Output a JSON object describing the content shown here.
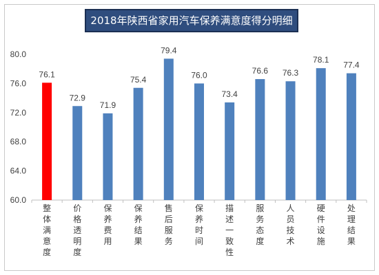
{
  "chart_data": {
    "type": "bar",
    "title": "2018年陕西省家用汽车保养满意度得分明细图",
    "categories": [
      "整体满意度",
      "价格透明度",
      "保养费用",
      "保养结果",
      "售后服务",
      "保养时间",
      "描述一致性",
      "服务态度",
      "人员技术",
      "硬件设施",
      "处理结果"
    ],
    "values": [
      76.1,
      72.9,
      71.9,
      75.4,
      79.4,
      76.0,
      73.4,
      76.6,
      76.3,
      78.1,
      77.4
    ],
    "value_labels": [
      "76.1",
      "72.9",
      "71.9",
      "75.4",
      "79.4",
      "76.0",
      "73.4",
      "76.6",
      "76.3",
      "78.1",
      "77.4"
    ],
    "ylim": [
      60,
      80
    ],
    "yticks": [
      60,
      64,
      68,
      72,
      76,
      80
    ],
    "ytick_labels": [
      "60.0",
      "64.0",
      "68.0",
      "72.0",
      "76.0",
      "80.0"
    ],
    "xlabel": "",
    "ylabel": "",
    "grid": false,
    "colors": {
      "default": "#4f81bd",
      "highlight": "#ff0000",
      "axis": "#bfbfbf",
      "title_bg": "#2f4d7e"
    },
    "highlight_index": 0
  }
}
